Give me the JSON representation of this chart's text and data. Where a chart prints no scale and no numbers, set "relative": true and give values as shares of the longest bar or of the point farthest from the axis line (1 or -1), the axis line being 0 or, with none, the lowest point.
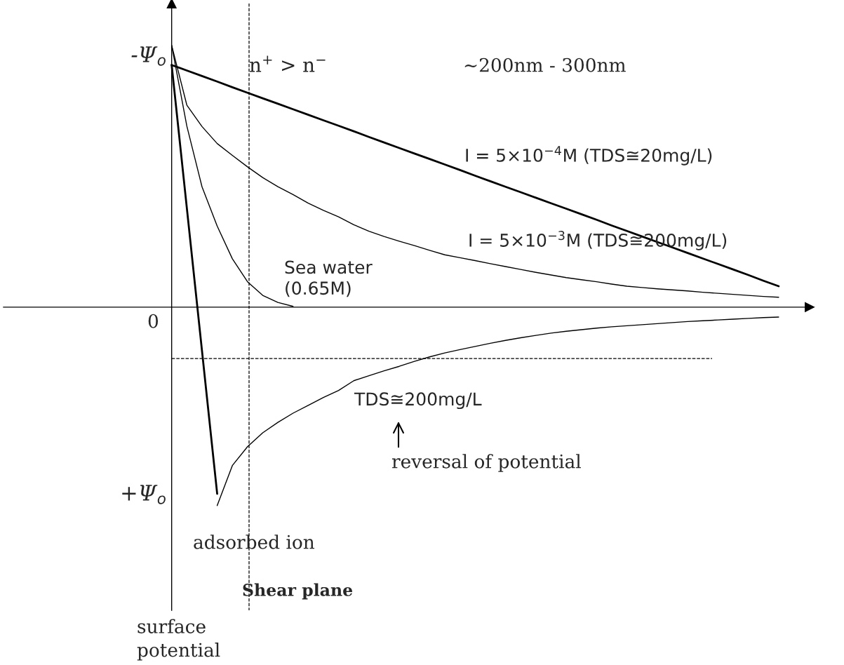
{
  "chart_data": {
    "type": "line",
    "relative": true,
    "legend": false,
    "marker": "none",
    "line_style": "solid",
    "categories": [
      null,
      null,
      null,
      null,
      null,
      null,
      null,
      null,
      null,
      null,
      null,
      null,
      null,
      null,
      null,
      null,
      null,
      null,
      null,
      null,
      null,
      null,
      null,
      null,
      null,
      null,
      null,
      null,
      null,
      null,
      null,
      null,
      null,
      null,
      null,
      null,
      null,
      null,
      null,
      null,
      null
    ],
    "series": [
      {
        "name": "I = 5×10$^{−4}$M (TDS≅20mg/L)",
        "color": "#000000",
        "values": [
          0.925,
          0.904,
          0.883,
          0.862,
          0.84,
          0.819,
          0.798,
          0.777,
          0.756,
          0.735,
          0.714,
          0.693,
          0.672,
          0.65,
          0.629,
          0.608,
          0.587,
          0.566,
          0.545,
          0.524,
          0.502,
          0.481,
          0.46,
          0.439,
          0.418,
          0.397,
          0.376,
          0.355,
          0.334,
          0.312,
          0.291,
          0.27,
          0.249,
          0.228,
          0.207,
          0.186,
          0.165,
          0.144,
          0.123,
          0.101,
          0.08
        ]
      },
      {
        "color": "#000000",
        "values": [
          0.925,
          0.379,
          -0.167,
          -0.713,
          null,
          null,
          null,
          null,
          null,
          null,
          null,
          null,
          null,
          null,
          null,
          null,
          null,
          null,
          null,
          null,
          null,
          null,
          null,
          null,
          null,
          null,
          null,
          null,
          null,
          null,
          null,
          null,
          null,
          null,
          null,
          null,
          null,
          null,
          null,
          null,
          null
        ]
      },
      {
        "name": "I = 5×10$^{−3}$M (TDS≅200mg/L)",
        "color": "#000000",
        "values": [
          1.0,
          0.772,
          0.69,
          0.625,
          0.58,
          0.536,
          0.495,
          0.46,
          0.43,
          0.397,
          0.37,
          0.345,
          0.315,
          0.29,
          0.27,
          0.252,
          0.235,
          0.217,
          0.2,
          0.189,
          0.178,
          0.166,
          0.155,
          0.144,
          0.133,
          0.123,
          0.113,
          0.105,
          0.097,
          0.088,
          0.08,
          0.075,
          0.07,
          0.066,
          0.062,
          0.057,
          0.053,
          0.049,
          0.045,
          0.041,
          0.038
        ]
      },
      {
        "name": "Sea water\n(0.65M)",
        "color": "#000000",
        "values": [
          1.0,
          0.692,
          0.46,
          0.31,
          0.185,
          0.097,
          0.045,
          0.018,
          0.003,
          null,
          null,
          null,
          null,
          null,
          null,
          null,
          null,
          null,
          null,
          null,
          null,
          null,
          null,
          null,
          null,
          null,
          null,
          null,
          null,
          null,
          null,
          null,
          null,
          null,
          null,
          null,
          null,
          null,
          null,
          null,
          null
        ]
      },
      {
        "name": "TDS≅200mg/L",
        "color": "#000000",
        "values": [
          null,
          null,
          null,
          -0.758,
          -0.605,
          -0.533,
          -0.48,
          -0.44,
          -0.405,
          -0.375,
          -0.345,
          -0.318,
          -0.281,
          -0.262,
          -0.243,
          -0.226,
          -0.207,
          -0.19,
          -0.175,
          -0.162,
          -0.15,
          -0.138,
          -0.127,
          -0.117,
          -0.108,
          -0.099,
          -0.092,
          -0.086,
          -0.08,
          -0.075,
          -0.071,
          -0.067,
          -0.063,
          -0.059,
          -0.055,
          -0.052,
          -0.049,
          -0.046,
          -0.043,
          -0.04,
          -0.038
        ]
      }
    ],
    "ref_lines": [
      {
        "axis": "y",
        "value": -0.196,
        "line_style": "dashed",
        "color": "#000000"
      }
    ],
    "annotations": [
      "-Ψ$_{o}$",
      "+Ψ$_{o}$",
      "0",
      "n$^{+}$ > n$^{−}$",
      "∼200nm - 300nm",
      "reversal of potential",
      "adsorbed ion",
      "surface\npotential",
      "Shear plane"
    ]
  }
}
